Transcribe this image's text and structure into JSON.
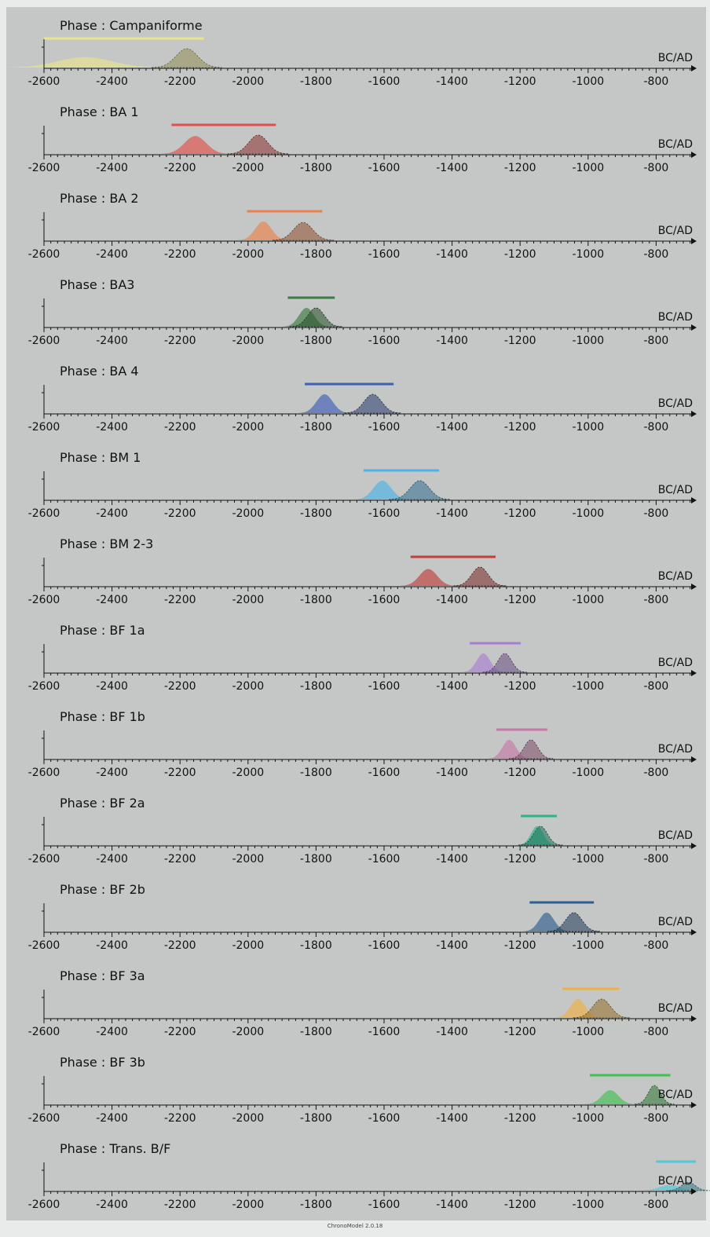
{
  "footer": "ChronoModel 2.0.18",
  "chart_data": {
    "type": "area",
    "x_unit": "BC/AD",
    "xlim": [
      -2600,
      -700
    ],
    "x_ticks": [
      -2600,
      -2400,
      -2200,
      -2000,
      -1800,
      -1600,
      -1400,
      -1200,
      -1000,
      -800
    ],
    "grid": false,
    "panels": [
      {
        "title": "Phase : Campaniforme",
        "color": "#e8e58a",
        "range": [
          -2600,
          -2130
        ],
        "begin": {
          "mean": -2480,
          "sd": 80,
          "h": 0.55
        },
        "end": {
          "mean": -2180,
          "sd": 32,
          "h": 1.0
        }
      },
      {
        "title": "Phase : BA 1",
        "color": "#e0504a",
        "range": [
          -2225,
          -1918
        ],
        "begin": {
          "mean": -2155,
          "sd": 32,
          "h": 0.95
        },
        "end": {
          "mean": -1970,
          "sd": 28,
          "h": 1.0
        }
      },
      {
        "title": "Phase : BA 2",
        "color": "#e8824a",
        "range": [
          -2003,
          -1782
        ],
        "begin": {
          "mean": -1955,
          "sd": 24,
          "h": 1.0
        },
        "end": {
          "mean": -1838,
          "sd": 28,
          "h": 0.95
        }
      },
      {
        "title": "Phase : BA3",
        "color": "#3c7d3f",
        "range": [
          -1883,
          -1745
        ],
        "begin": {
          "mean": -1828,
          "sd": 22,
          "h": 1.0
        },
        "end": {
          "mean": -1800,
          "sd": 24,
          "h": 1.0
        }
      },
      {
        "title": "Phase : BA 4",
        "color": "#3f5fb5",
        "range": [
          -1833,
          -1572
        ],
        "begin": {
          "mean": -1775,
          "sd": 24,
          "h": 1.0
        },
        "end": {
          "mean": -1633,
          "sd": 26,
          "h": 1.0
        }
      },
      {
        "title": "Phase : BM 1",
        "color": "#4ab4e8",
        "range": [
          -1660,
          -1438
        ],
        "begin": {
          "mean": -1605,
          "sd": 26,
          "h": 1.0
        },
        "end": {
          "mean": -1495,
          "sd": 28,
          "h": 1.0
        }
      },
      {
        "title": "Phase : BM 2-3",
        "color": "#c0403c",
        "range": [
          -1522,
          -1272
        ],
        "begin": {
          "mean": -1470,
          "sd": 26,
          "h": 0.9
        },
        "end": {
          "mean": -1318,
          "sd": 24,
          "h": 1.0
        }
      },
      {
        "title": "Phase : BF 1a",
        "color": "#a87fd0",
        "range": [
          -1348,
          -1198
        ],
        "begin": {
          "mean": -1308,
          "sd": 20,
          "h": 1.0
        },
        "end": {
          "mean": -1245,
          "sd": 20,
          "h": 1.0
        }
      },
      {
        "title": "Phase : BF 1b",
        "color": "#c878a8",
        "range": [
          -1270,
          -1120
        ],
        "begin": {
          "mean": -1232,
          "sd": 20,
          "h": 1.0
        },
        "end": {
          "mean": -1168,
          "sd": 20,
          "h": 1.0
        }
      },
      {
        "title": "Phase : BF 2a",
        "color": "#2ab48a",
        "range": [
          -1198,
          -1092
        ],
        "begin": {
          "mean": -1150,
          "sd": 18,
          "h": 1.0
        },
        "end": {
          "mean": -1140,
          "sd": 20,
          "h": 1.0
        }
      },
      {
        "title": "Phase : BF 2b",
        "color": "#2f5f8f",
        "range": [
          -1172,
          -983
        ],
        "begin": {
          "mean": -1122,
          "sd": 22,
          "h": 1.0
        },
        "end": {
          "mean": -1042,
          "sd": 24,
          "h": 1.0
        }
      },
      {
        "title": "Phase : BF 3a",
        "color": "#f0b040",
        "range": [
          -1075,
          -908
        ],
        "begin": {
          "mean": -1030,
          "sd": 22,
          "h": 1.0
        },
        "end": {
          "mean": -960,
          "sd": 26,
          "h": 1.0
        }
      },
      {
        "title": "Phase : BF 3b",
        "color": "#40c050",
        "range": [
          -995,
          -758
        ],
        "begin": {
          "mean": -935,
          "sd": 24,
          "h": 0.75
        },
        "end": {
          "mean": -805,
          "sd": 18,
          "h": 1.0
        }
      },
      {
        "title": "Phase : Trans. B/F",
        "color": "#50c8d8",
        "range": [
          -800,
          -680
        ],
        "begin": {
          "mean": -760,
          "sd": 30,
          "h": 0.3
        },
        "end": {
          "mean": -705,
          "sd": 20,
          "h": 0.45
        }
      }
    ]
  }
}
